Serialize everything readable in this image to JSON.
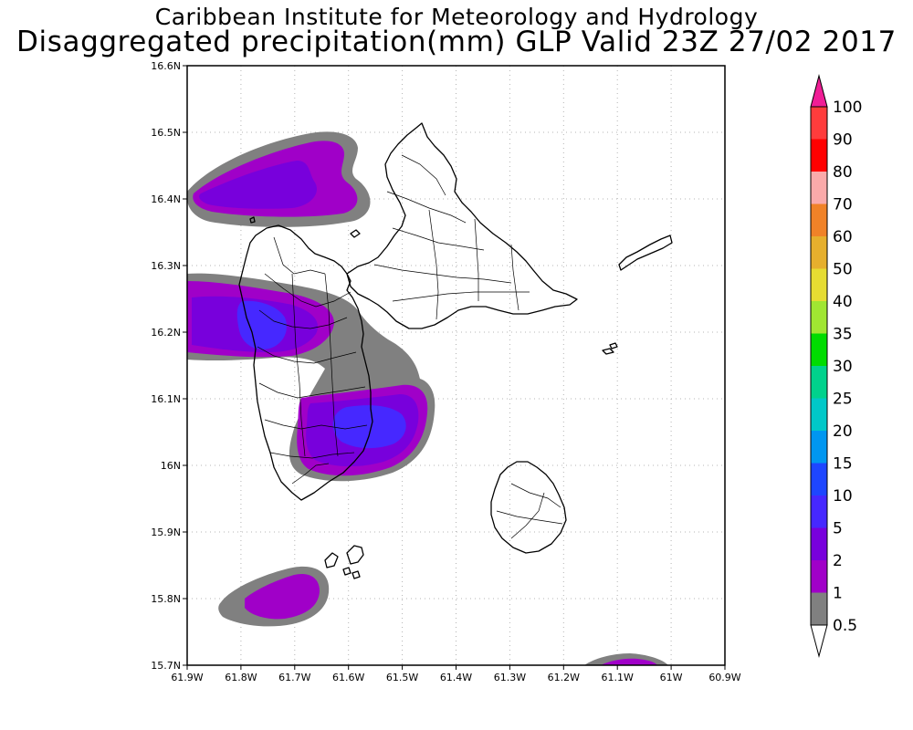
{
  "header": {
    "line1": "Caribbean Institute for Meteorology and Hydrology",
    "line2": "Disaggregated precipitation(mm) GLP Valid 23Z 27/02 2017"
  },
  "axes": {
    "x_ticks": [
      "61.9W",
      "61.8W",
      "61.7W",
      "61.6W",
      "61.5W",
      "61.4W",
      "61.3W",
      "61.2W",
      "61.1W",
      "61W",
      "60.9W"
    ],
    "y_ticks": [
      "16.6N",
      "16.5N",
      "16.4N",
      "16.3N",
      "16.2N",
      "16.1N",
      "16N",
      "15.9N",
      "15.8N",
      "15.7N"
    ]
  },
  "colorbar": {
    "levels": [
      {
        "label": "0.5",
        "color": "#ffffff"
      },
      {
        "label": "1",
        "color": "#808080"
      },
      {
        "label": "2",
        "color": "#a000c8"
      },
      {
        "label": "5",
        "color": "#7800dc"
      },
      {
        "label": "10",
        "color": "#4628ff"
      },
      {
        "label": "15",
        "color": "#1e46ff"
      },
      {
        "label": "20",
        "color": "#0096f0"
      },
      {
        "label": "25",
        "color": "#00c8c8"
      },
      {
        "label": "30",
        "color": "#00d28c"
      },
      {
        "label": "35",
        "color": "#00dc00"
      },
      {
        "label": "40",
        "color": "#a0e632"
      },
      {
        "label": "50",
        "color": "#e6dc32"
      },
      {
        "label": "60",
        "color": "#e6af2d"
      },
      {
        "label": "70",
        "color": "#f08228"
      },
      {
        "label": "80",
        "color": "#faaaaa"
      },
      {
        "label": "90",
        "color": "#ff0000"
      },
      {
        "label": "100",
        "color": "#ff3c3c"
      }
    ],
    "top_color": "#f01e96"
  }
}
